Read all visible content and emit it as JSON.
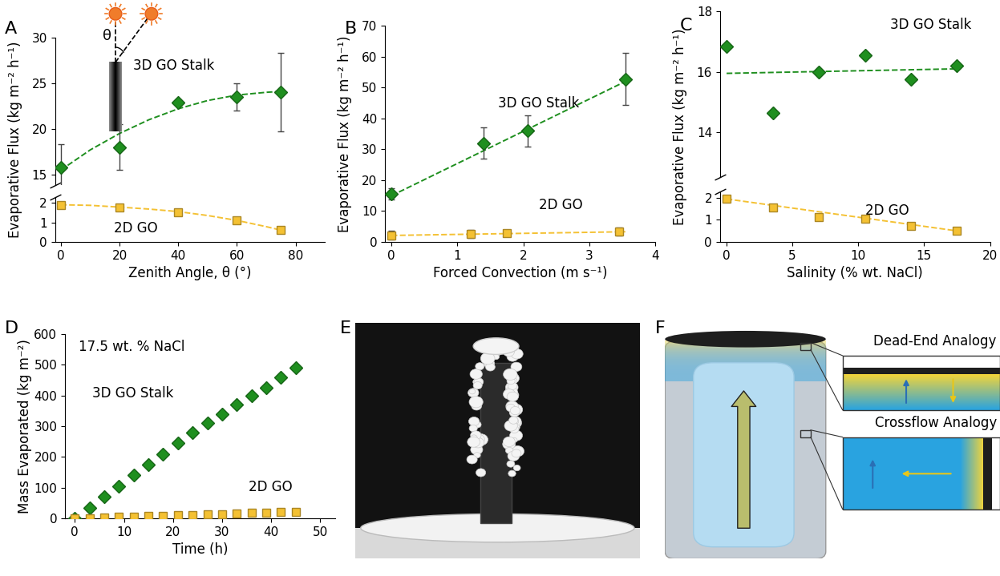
{
  "panel_labels": [
    "A",
    "B",
    "C",
    "D",
    "E",
    "F"
  ],
  "chart_data": [
    {
      "type": "scatter",
      "xlabel": "Zenith Angle, θ (°)",
      "ylabel": "Evaporative Flux (kg m⁻² h⁻¹)",
      "xlim": [
        -2,
        90
      ],
      "xticks": [
        0,
        20,
        40,
        60,
        80
      ],
      "ylim": [
        [
          0,
          2.3
        ],
        [
          13.9,
          30
        ]
      ],
      "yticks": [
        0,
        1,
        2,
        15,
        20,
        25,
        30
      ],
      "annotations": [
        "θ"
      ],
      "series": [
        {
          "name": "3D GO Stalk",
          "color": "#1f8f1f",
          "marker": "diamond",
          "x": [
            0,
            20,
            40,
            60,
            75
          ],
          "values": [
            15.8,
            18.0,
            22.9,
            23.5,
            24.0
          ],
          "errors": [
            2.5,
            2.5,
            0.3,
            1.5,
            4.3
          ],
          "fit": {
            "line_style": "dashed",
            "x": [
              0,
              10,
              20,
              30,
              40,
              50,
              60,
              70,
              75
            ],
            "values": [
              15.5,
              17.7,
              19.5,
              21.0,
              22.2,
              23.1,
              23.7,
              24.0,
              24.1
            ]
          }
        },
        {
          "name": "2D GO",
          "color": "#f4c133",
          "marker": "square",
          "x": [
            0,
            20,
            40,
            60,
            75
          ],
          "values": [
            1.9,
            1.75,
            1.5,
            1.1,
            0.6
          ],
          "errors": [
            0.1,
            0.1,
            0.05,
            0.1,
            0.15
          ],
          "fit": {
            "line_style": "dashed",
            "x": [
              0,
              10,
              20,
              30,
              40,
              50,
              60,
              70,
              75
            ],
            "values": [
              1.9,
              1.87,
              1.78,
              1.68,
              1.55,
              1.35,
              1.1,
              0.78,
              0.6
            ]
          }
        }
      ]
    },
    {
      "type": "scatter",
      "xlabel": "Forced Convection (m s⁻¹)",
      "ylabel": "Evaporative Flux (kg m⁻² h⁻¹)",
      "xlim": [
        -0.1,
        4
      ],
      "xticks": [
        0,
        1,
        2,
        3,
        4
      ],
      "ylim": [
        0,
        70
      ],
      "yticks": [
        0,
        10,
        20,
        30,
        40,
        50,
        60,
        70
      ],
      "series": [
        {
          "name": "3D GO Stalk",
          "color": "#1f8f1f",
          "marker": "diamond",
          "x": [
            0,
            1.4,
            2.07,
            3.55
          ],
          "values": [
            15.5,
            32,
            36,
            52.8
          ],
          "errors": [
            1.8,
            5,
            5,
            8.5
          ],
          "fit": {
            "line_style": "dashed",
            "x": [
              0,
              3.55
            ],
            "values": [
              15,
              52
            ]
          }
        },
        {
          "name": "2D GO",
          "color": "#f4c133",
          "marker": "square",
          "x": [
            0,
            1.2,
            1.75,
            3.45
          ],
          "values": [
            2.2,
            2.6,
            2.8,
            3.4
          ],
          "errors": [
            1.5,
            1.2,
            0.8,
            1.2
          ],
          "fit": {
            "line_style": "dashed",
            "x": [
              0,
              3.55
            ],
            "values": [
              2.1,
              3.3
            ]
          }
        }
      ]
    },
    {
      "type": "scatter",
      "xlabel": "Salinity (% wt. NaCl)",
      "ylabel": "Evaporative Flux (kg m⁻² h⁻¹)",
      "xlim": [
        -0.5,
        20
      ],
      "xticks": [
        0,
        5,
        10,
        15,
        20
      ],
      "ylim": [
        [
          0,
          2.3
        ],
        [
          12.5,
          18
        ]
      ],
      "yticks": [
        0,
        1,
        2,
        14,
        16,
        18
      ],
      "series": [
        {
          "name": "3D GO Stalk",
          "color": "#1f8f1f",
          "marker": "diamond",
          "x": [
            0,
            3.5,
            7,
            10.5,
            14,
            17.5
          ],
          "values": [
            16.85,
            14.65,
            16.0,
            16.55,
            15.75,
            16.2
          ],
          "fit": {
            "line_style": "dashed",
            "x": [
              0,
              17.5
            ],
            "values": [
              15.95,
              16.1
            ]
          }
        },
        {
          "name": "2D GO",
          "color": "#f4c133",
          "marker": "square",
          "x": [
            0,
            3.5,
            7,
            10.5,
            14,
            17.5
          ],
          "values": [
            1.97,
            1.55,
            1.12,
            1.05,
            0.72,
            0.52
          ],
          "fit": {
            "line_style": "dashed",
            "x": [
              0,
              17.5
            ],
            "values": [
              1.95,
              0.5
            ]
          }
        }
      ]
    },
    {
      "type": "scatter",
      "xlabel": "Time (h)",
      "ylabel": "Mass Evaporated (kg m⁻²)",
      "xlim": [
        -2,
        53
      ],
      "xticks": [
        0,
        10,
        20,
        30,
        40,
        50
      ],
      "ylim": [
        0,
        600
      ],
      "yticks": [
        0,
        100,
        200,
        300,
        400,
        500,
        600
      ],
      "annotations": [
        "17.5 wt. % NaCl"
      ],
      "series": [
        {
          "name": "3D GO Stalk",
          "color": "#1f8f1f",
          "marker": "diamond",
          "x": [
            0,
            3,
            6,
            9,
            12,
            15,
            18,
            21,
            24,
            27,
            30,
            33,
            36,
            39,
            42,
            45
          ],
          "values": [
            0,
            35,
            70,
            105,
            140,
            175,
            210,
            245,
            280,
            310,
            340,
            370,
            400,
            425,
            460,
            490
          ]
        },
        {
          "name": "2D GO",
          "color": "#f4c133",
          "marker": "square",
          "x": [
            0,
            3,
            6,
            9,
            12,
            15,
            18,
            21,
            24,
            27,
            30,
            33,
            36,
            39,
            42,
            45
          ],
          "values": [
            0,
            1.5,
            3,
            4.5,
            6,
            7.5,
            9,
            10,
            11.5,
            13,
            14.5,
            16,
            17.5,
            19,
            20.5,
            22
          ]
        }
      ]
    }
  ],
  "diagram": {
    "labels": [
      "Dead-End Analogy",
      "Crossflow Analogy"
    ]
  }
}
